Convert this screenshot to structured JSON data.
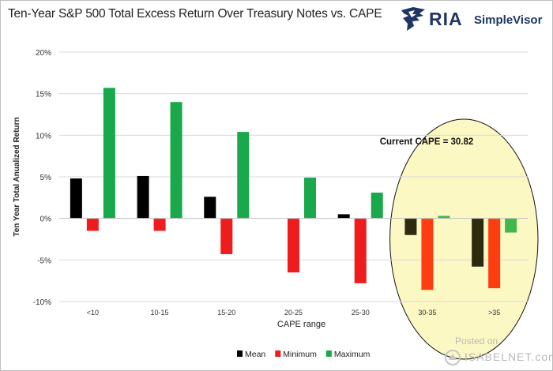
{
  "title": "Ten-Year S&P 500 Total Excess Return Over Treasury Notes vs. CAPE",
  "logo": {
    "brand": "RIA",
    "product": "SimpleVisor"
  },
  "watermark": {
    "posted": "Posted on",
    "site": "ISABELNET.com"
  },
  "chart_data": {
    "type": "bar",
    "title": "Ten-Year S&P 500 Total Excess Return Over Treasury Notes vs. CAPE",
    "xlabel": "CAPE range",
    "ylabel": "Ten Year Total Anualized Return",
    "categories": [
      "<10",
      "10-15",
      "15-20",
      "20-25",
      "25-30",
      "30-35",
      ">35"
    ],
    "series": [
      {
        "name": "Mean",
        "color": "#000000",
        "values": [
          4.8,
          5.1,
          2.6,
          null,
          0.5,
          -2.0,
          -5.8
        ]
      },
      {
        "name": "Minimum",
        "color": "#ee1c1c",
        "values": [
          -1.5,
          -1.5,
          -4.3,
          -6.5,
          -7.8,
          -8.6,
          -8.4
        ]
      },
      {
        "name": "Maximum",
        "color": "#19a84c",
        "values": [
          15.7,
          14.0,
          10.4,
          4.9,
          3.1,
          0.3,
          -1.7
        ]
      }
    ],
    "ylim": [
      -10,
      20
    ],
    "yticks": [
      -10,
      -5,
      0,
      5,
      10,
      15,
      20
    ],
    "ytick_format": "%",
    "grid": true,
    "legend_position": "bottom",
    "annotation": "Current CAPE = 30.82",
    "highlight_categories": [
      "30-35",
      ">35"
    ],
    "highlight_color": "#fcf8c3",
    "highlight_series_colors": {
      "Mean": "#2d2a10",
      "Minimum": "#fe3d10",
      "Maximum": "#41b749"
    }
  }
}
